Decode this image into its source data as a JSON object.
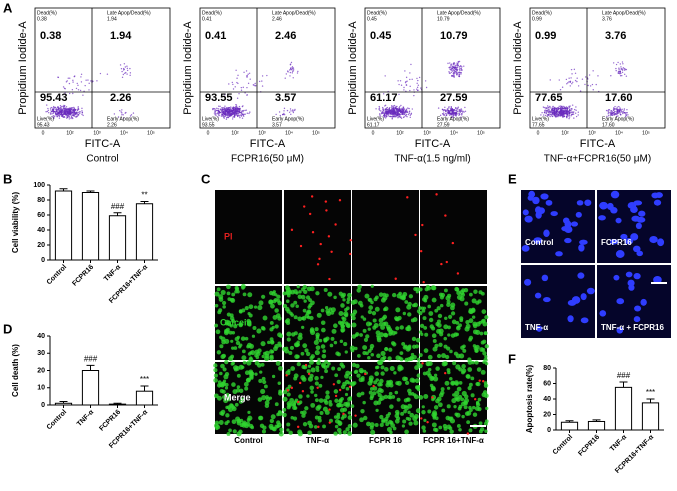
{
  "flow_cytometry": {
    "label": "A",
    "y_label": "Propidium Iodide-A",
    "x_label": "FITC-A",
    "x_ticks": [
      "0",
      "10²",
      "10³",
      "10⁴",
      "10⁵"
    ],
    "dead_label": "Dead(%)",
    "late_label": "Late Apop/Dead(%)",
    "live_label": "Live(%)",
    "early_label": "Early Apop(%)",
    "panels": [
      {
        "caption": "Control",
        "dead": "0.38",
        "late": "1.94",
        "live": "95.43",
        "early": "2.26"
      },
      {
        "caption": "FCPR16(50 μM)",
        "dead": "0.41",
        "late": "2.46",
        "live": "93.55",
        "early": "3.57"
      },
      {
        "caption": "TNF-α(1.5 ng/ml)",
        "dead": "0.45",
        "late": "10.79",
        "live": "61.17",
        "early": "27.59"
      },
      {
        "caption": "TNF-α+FCPR16(50 μM)",
        "dead": "0.99",
        "late": "3.76",
        "live": "77.65",
        "early": "17.60"
      }
    ]
  },
  "chart_data": [
    {
      "type": "bar",
      "label": "B",
      "y_label": "Cell viability (%)",
      "color": "#ffffff",
      "categories": [
        "Control",
        "FCPR16",
        "TNF-α",
        "FCPR16+TNF-α"
      ],
      "values": [
        92,
        90,
        59,
        75
      ],
      "errors": [
        3,
        2,
        4,
        3
      ],
      "annotations": [
        null,
        null,
        "###",
        "**"
      ],
      "ylim": [
        0,
        100
      ],
      "yticks": [
        0,
        20,
        40,
        60,
        80,
        100
      ]
    },
    {
      "type": "bar",
      "label": "D",
      "y_label": "Cell death (%)",
      "color": "#ffffff",
      "categories": [
        "Control",
        "TNF-α",
        "FCPR16",
        "FCPR16+TNF-α"
      ],
      "values": [
        1,
        20,
        0.5,
        8
      ],
      "errors": [
        1,
        3,
        0.5,
        3
      ],
      "annotations": [
        null,
        "###",
        null,
        "***"
      ],
      "ylim": [
        0,
        40
      ],
      "yticks": [
        0,
        10,
        20,
        30,
        40
      ]
    },
    {
      "type": "bar",
      "label": "F",
      "y_label": "Apoptosis rate(%)",
      "color": "#ffffff",
      "categories": [
        "Control",
        "FCPR16",
        "TNF-α",
        "FCPR16+TNF-α"
      ],
      "values": [
        10,
        11,
        55,
        35
      ],
      "errors": [
        2,
        2,
        7,
        5
      ],
      "annotations": [
        null,
        null,
        "###",
        "***"
      ],
      "ylim": [
        0,
        80
      ],
      "yticks": [
        0,
        20,
        40,
        60,
        80
      ]
    }
  ],
  "fluorescence": {
    "label": "C",
    "rows": [
      "PI",
      "Calcein",
      "Merge"
    ],
    "columns": [
      "Control",
      "TNF-α",
      "FCPR 16",
      "FCPR 16+TNF-α"
    ]
  },
  "nuclei": {
    "label": "E",
    "captions": [
      "Control",
      "FCPR16",
      "TNF-α",
      "TNF-α + FCPR16"
    ]
  }
}
